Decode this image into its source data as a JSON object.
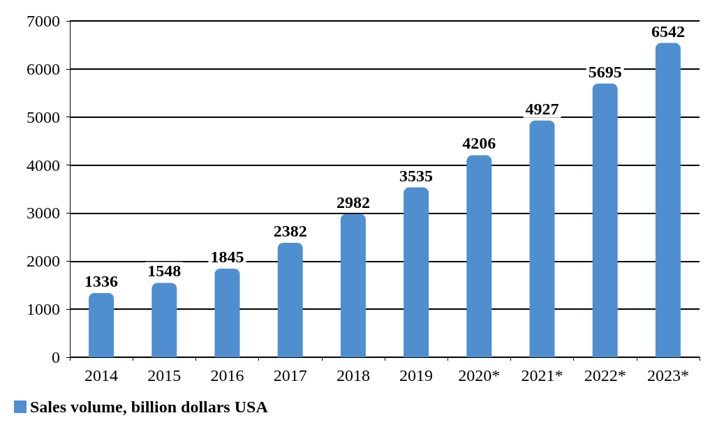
{
  "chart_data": {
    "type": "bar",
    "categories": [
      "2014",
      "2015",
      "2016",
      "2017",
      "2018",
      "2019",
      "2020*",
      "2021*",
      "2022*",
      "2023*"
    ],
    "series": [
      {
        "name": "Sales volume, billion dollars USA",
        "color": "#4f8fd0",
        "values": [
          1336,
          1548,
          1845,
          2382,
          2982,
          3535,
          4206,
          4927,
          5695,
          6542
        ]
      }
    ],
    "ylim": [
      0,
      7000
    ],
    "yticks": [
      0,
      1000,
      2000,
      3000,
      4000,
      5000,
      6000,
      7000
    ],
    "grid": "y",
    "data_labels": true,
    "legend": "bottom left"
  }
}
